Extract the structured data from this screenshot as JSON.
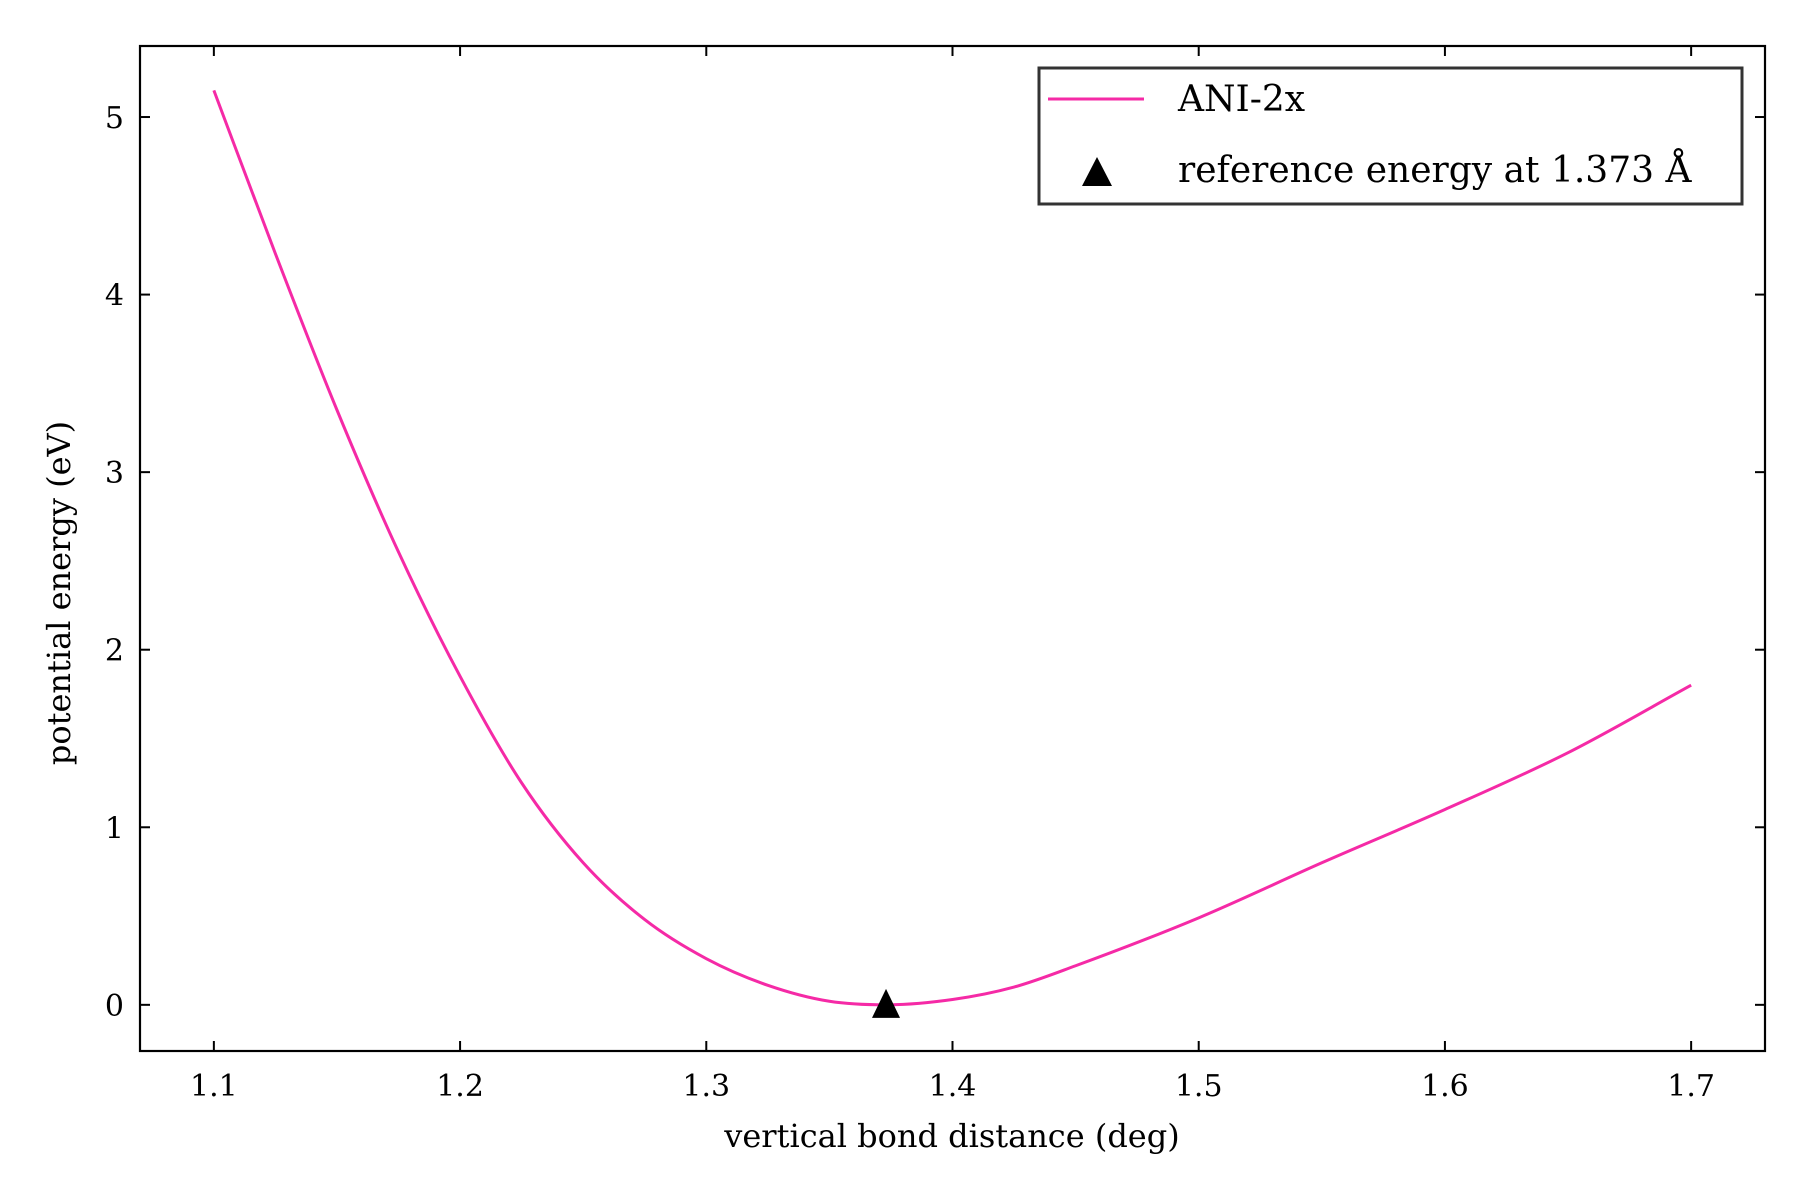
{
  "chart_data": {
    "type": "line",
    "xlabel": "vertical bond distance (deg)",
    "ylabel": "potential energy (eV)",
    "xlim": [
      1.07,
      1.73
    ],
    "ylim": [
      -0.26,
      5.4
    ],
    "x_ticks": [
      1.1,
      1.2,
      1.3,
      1.4,
      1.5,
      1.6,
      1.7
    ],
    "x_tick_labels": [
      "1.1",
      "1.2",
      "1.3",
      "1.4",
      "1.5",
      "1.6",
      "1.7"
    ],
    "y_ticks": [
      0,
      1,
      2,
      3,
      4,
      5
    ],
    "y_tick_labels": [
      "0",
      "1",
      "2",
      "3",
      "4",
      "5"
    ],
    "grid": false,
    "legend_position": "top-right",
    "series": [
      {
        "name": "ANI-2x",
        "color": "#f52aa6",
        "x": [
          1.1,
          1.125,
          1.15,
          1.175,
          1.2,
          1.225,
          1.25,
          1.275,
          1.3,
          1.325,
          1.35,
          1.373,
          1.4,
          1.425,
          1.45,
          1.5,
          1.55,
          1.6,
          1.65,
          1.7
        ],
        "y": [
          5.15,
          4.23,
          3.35,
          2.55,
          1.85,
          1.25,
          0.8,
          0.48,
          0.26,
          0.11,
          0.02,
          0.0,
          0.03,
          0.1,
          0.22,
          0.49,
          0.8,
          1.1,
          1.42,
          1.8
        ]
      }
    ],
    "markers": [
      {
        "name": "reference energy at 1.373 Å",
        "shape": "triangle-up",
        "color": "#000000",
        "x": 1.373,
        "y": 0.0
      }
    ]
  }
}
